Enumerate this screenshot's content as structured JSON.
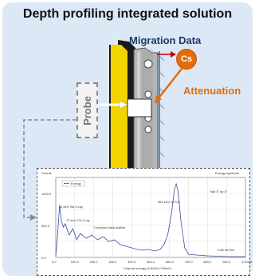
{
  "title": "Depth profiling integrated solution",
  "labels": {
    "migration_data": "Migration Data",
    "source": "Cs",
    "attenuation": "Attenuation",
    "probe": "Probe"
  },
  "spectrum": {
    "header_left": "Counts",
    "header_right": "Energy spectrum",
    "legend_series": "Energy",
    "xlabel": "Channel energy (0.5041x+16keV)",
    "peaks": [
      "32 keV, Ba X-ray",
      "77 keV, Pb X-ray",
      "Compton back-scatter",
      "662 keV, 137Cs",
      "NaI 3\" by 3\"",
      "0.85 keV/ch"
    ],
    "y_ticks": [
      "",
      "1000.0",
      "",
      "500.0",
      "",
      "0.0"
    ],
    "x_ticks": [
      "0.0",
      "100.0",
      "200.0",
      "300.0",
      "400.0",
      "500.0",
      "600.0",
      "700.0",
      "800.0",
      "900.0",
      "1,000.0"
    ]
  },
  "colors": {
    "panel_bg": "#dce8f6",
    "accent_orange": "#e36c09",
    "migration_navy": "#1f3864",
    "arrow_red": "#c00000",
    "spectrum_line": "#3c4ea0"
  }
}
